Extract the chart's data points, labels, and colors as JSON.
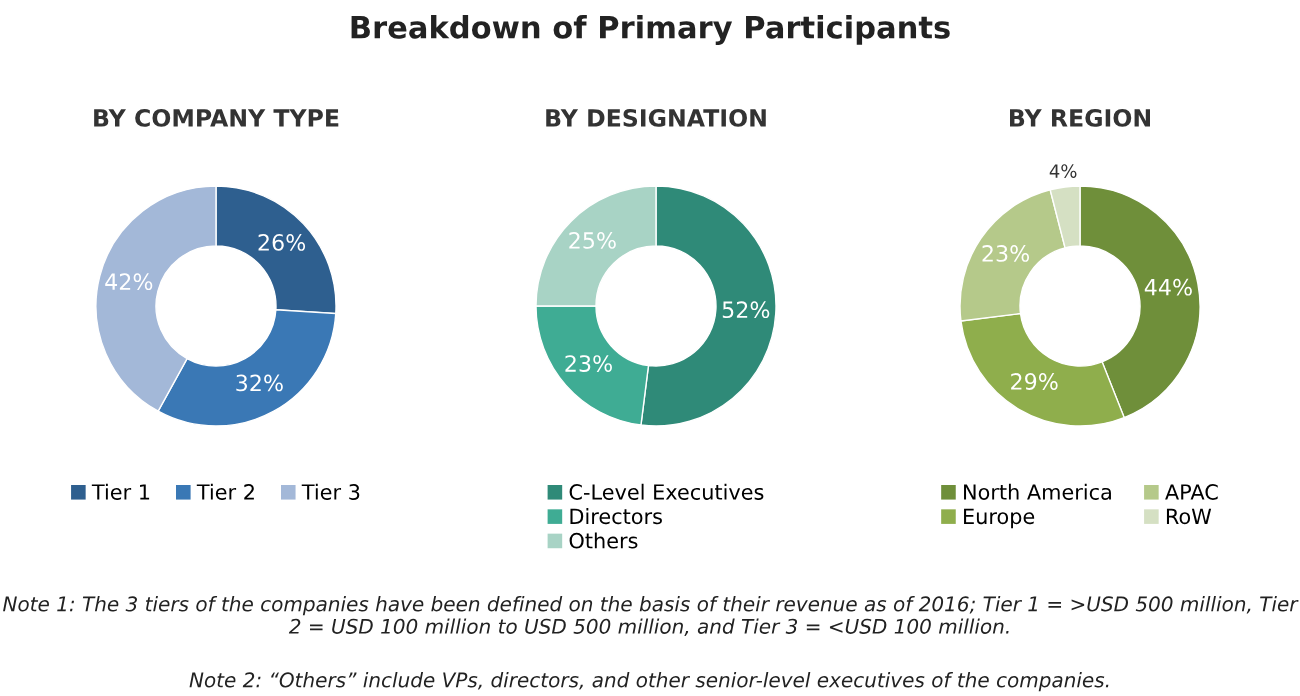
{
  "chart_data": [
    {
      "type": "other",
      "title": "Breakdown of Primary Participants",
      "annotations": [
        "Note 1: The 3 tiers of the companies have been defined on the basis of their revenue as of 2016; Tier 1 = >USD 500 million, Tier 2 = USD 100 million to USD 500 million, and Tier 3 = <USD 100 million.",
        "Note 2: “Others” include VPs, directors, and other senior-level executives of the companies."
      ]
    },
    {
      "type": "donut",
      "title": "BY COMPANY TYPE",
      "categories": [
        "Tier 1",
        "Tier 2",
        "Tier 3"
      ],
      "values": [
        26,
        32,
        42
      ],
      "value_labels": [
        "26%",
        "32%",
        "42%"
      ],
      "colors": [
        "#2e5f8f",
        "#3a78b5",
        "#a3b8d8"
      ],
      "legend": "bottom"
    },
    {
      "type": "donut",
      "title": "BY DESIGNATION",
      "categories": [
        "C-Level Executives",
        "Directors",
        "Others"
      ],
      "values": [
        52,
        23,
        25
      ],
      "value_labels": [
        "52%",
        "23%",
        "25%"
      ],
      "colors": [
        "#2f8a78",
        "#3fac94",
        "#a8d3c5"
      ],
      "legend": "bottom"
    },
    {
      "type": "donut",
      "title": "BY REGION",
      "categories": [
        "North America",
        "Europe",
        "APAC",
        "RoW"
      ],
      "values": [
        44,
        29,
        23,
        4
      ],
      "value_labels": [
        "44%",
        "29%",
        "23%",
        "4%"
      ],
      "colors": [
        "#6f8f3a",
        "#8fae4c",
        "#b5c98a",
        "#d5e0c3"
      ],
      "legend": "bottom"
    }
  ]
}
